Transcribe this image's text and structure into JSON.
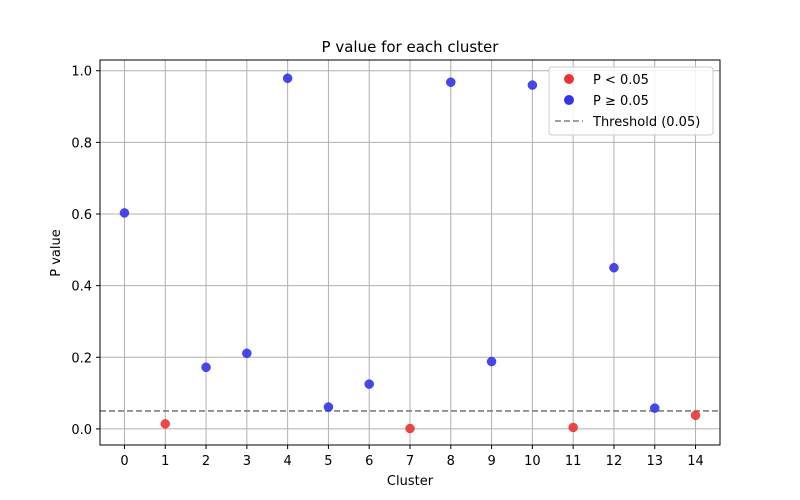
{
  "chart_data": {
    "type": "scatter",
    "title": "P value for each cluster",
    "xlabel": "Cluster",
    "ylabel": "P value",
    "xlim": [
      -0.6,
      14.6
    ],
    "ylim": [
      -0.045,
      1.03
    ],
    "xticks": [
      "0",
      "1",
      "2",
      "3",
      "4",
      "5",
      "6",
      "7",
      "8",
      "9",
      "10",
      "11",
      "12",
      "13",
      "14"
    ],
    "yticks": [
      0.0,
      0.2,
      0.4,
      0.6,
      0.8,
      1.0
    ],
    "ytick_labels": [
      "0.0",
      "0.2",
      "0.4",
      "0.6",
      "0.8",
      "1.0"
    ],
    "grid": true,
    "legend_position": "top-right",
    "series": [
      {
        "name": "P < 0.05",
        "color": "#ee3333",
        "points": [
          {
            "x": 1,
            "y": 0.014
          },
          {
            "x": 7,
            "y": 0.001
          },
          {
            "x": 11,
            "y": 0.004
          },
          {
            "x": 14,
            "y": 0.038
          }
        ]
      },
      {
        "name": "P ≥ 0.05",
        "color": "#3333ee",
        "points": [
          {
            "x": 0,
            "y": 0.603
          },
          {
            "x": 2,
            "y": 0.172
          },
          {
            "x": 3,
            "y": 0.211
          },
          {
            "x": 4,
            "y": 0.979
          },
          {
            "x": 5,
            "y": 0.061
          },
          {
            "x": 6,
            "y": 0.125
          },
          {
            "x": 8,
            "y": 0.968
          },
          {
            "x": 9,
            "y": 0.188
          },
          {
            "x": 10,
            "y": 0.96
          },
          {
            "x": 12,
            "y": 0.45
          },
          {
            "x": 13,
            "y": 0.058
          }
        ]
      }
    ],
    "threshold": {
      "name": "Threshold (0.05)",
      "y": 0.05,
      "color": "#808080"
    }
  }
}
